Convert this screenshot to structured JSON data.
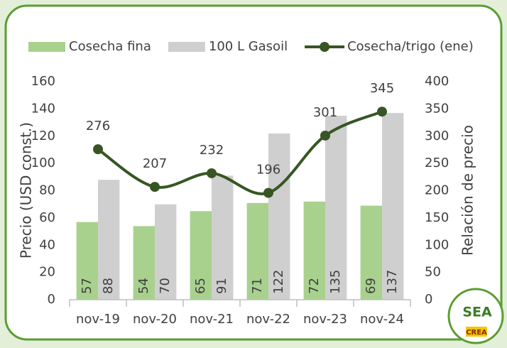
{
  "chart_data": {
    "type": "bar_line",
    "categories": [
      "nov-19",
      "nov-20",
      "nov-21",
      "nov-22",
      "nov-23",
      "nov-24"
    ],
    "series": [
      {
        "name": "Cosecha fina",
        "color": "#a9d18e",
        "type": "bar",
        "values": [
          57,
          54,
          65,
          71,
          72,
          69
        ]
      },
      {
        "name": "100 L Gasoil",
        "color": "#cfcfcf",
        "type": "bar",
        "values": [
          88,
          70,
          91,
          122,
          135,
          137
        ]
      },
      {
        "name": "Cosecha/trigo (ene)",
        "color": "#375623",
        "type": "line",
        "axis": "y2",
        "values": [
          276,
          207,
          232,
          196,
          301,
          345
        ]
      }
    ],
    "ylabel": "Precio (USD const.)",
    "y2label": "Relación de precio",
    "ylim": [
      0,
      160
    ],
    "yticks": [
      0,
      20,
      40,
      60,
      80,
      100,
      120,
      140,
      160
    ],
    "y2lim": [
      0,
      400
    ],
    "y2ticks": [
      0,
      50,
      100,
      150,
      200,
      250,
      300,
      350,
      400
    ],
    "legend": "top"
  },
  "logo": {
    "text": "SEA",
    "subtext": "CREA"
  }
}
